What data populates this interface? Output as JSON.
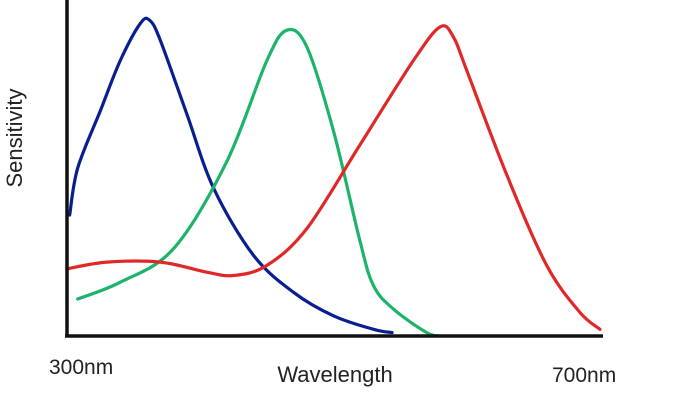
{
  "chart_data": {
    "type": "line",
    "xlabel": "Wavelength",
    "ylabel": "Sensitivity",
    "x_tick_labels": [
      "300nm",
      "700nm"
    ],
    "xlim": [
      300,
      700
    ],
    "ylim": [
      0,
      1
    ],
    "grid": false,
    "legend": "none",
    "series": [
      {
        "color": "#0a1f8f",
        "x": [
          302,
          308,
          325,
          340,
          355,
          362,
          370,
          390,
          410,
          440,
          470,
          500,
          530,
          544
        ],
        "y": [
          0.36,
          0.5,
          0.67,
          0.82,
          0.93,
          0.94,
          0.88,
          0.66,
          0.44,
          0.24,
          0.13,
          0.06,
          0.02,
          0.01
        ]
      },
      {
        "color": "#1db36a",
        "x": [
          308,
          340,
          380,
          420,
          450,
          465,
          480,
          500,
          520,
          530,
          545,
          570,
          580
        ],
        "y": [
          0.11,
          0.16,
          0.26,
          0.52,
          0.82,
          0.91,
          0.86,
          0.61,
          0.28,
          0.15,
          0.08,
          0.01,
          0.0
        ]
      },
      {
        "color": "#e02828",
        "x": [
          300,
          330,
          370,
          405,
          425,
          450,
          480,
          520,
          560,
          580,
          590,
          600,
          630,
          660,
          685,
          700
        ],
        "y": [
          0.2,
          0.22,
          0.22,
          0.19,
          0.18,
          0.21,
          0.32,
          0.57,
          0.82,
          0.92,
          0.89,
          0.79,
          0.48,
          0.21,
          0.07,
          0.02
        ]
      }
    ]
  }
}
